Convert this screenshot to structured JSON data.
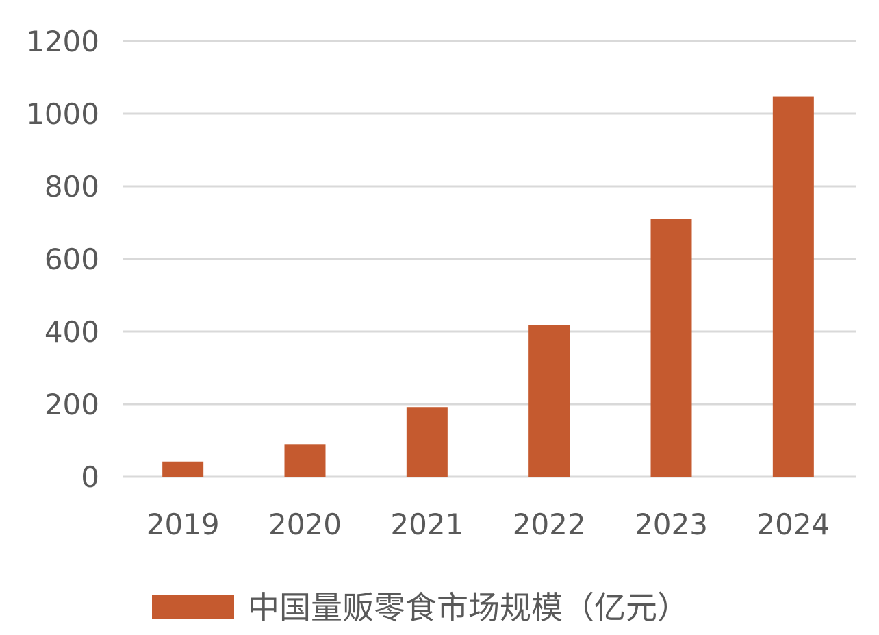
{
  "chart_data": {
    "type": "bar",
    "title": "",
    "xlabel": "",
    "ylabel": "",
    "categories": [
      "2019",
      "2020",
      "2021",
      "2022",
      "2023",
      "2024"
    ],
    "series": [
      {
        "name": "中国量贩零食市场规模（亿元）",
        "values": [
          42,
          90,
          192,
          417,
          710,
          1048
        ],
        "color": "#c55a2f"
      }
    ],
    "ylim": [
      0,
      1200
    ],
    "yticks": [
      "0",
      "200",
      "400",
      "600",
      "800",
      "1000",
      "1200"
    ],
    "grid": true,
    "gridline_color": "#d9d9d9",
    "tick_label_color": "#595959",
    "legend_position": "bottom"
  }
}
